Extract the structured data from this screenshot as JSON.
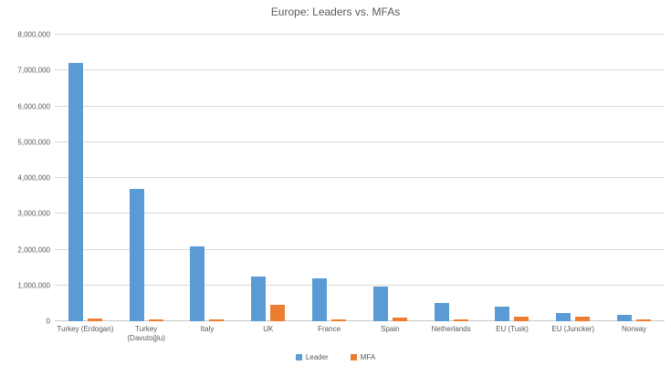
{
  "chart_data": {
    "type": "bar",
    "title": "Europe: Leaders vs. MFAs",
    "categories": [
      "Turkey (Erdogan)",
      "Turkey (Davutoğlu)",
      "Italy",
      "UK",
      "France",
      "Spain",
      "Netherlands",
      "EU (Tusk)",
      "EU (Juncker)",
      "Norway"
    ],
    "series": [
      {
        "name": "Leader",
        "color": "#5b9bd5",
        "values": [
          7200000,
          3700000,
          2100000,
          1250000,
          1200000,
          975000,
          520000,
          420000,
          240000,
          170000
        ]
      },
      {
        "name": "MFA",
        "color": "#ed7d31",
        "values": [
          80000,
          60000,
          60000,
          450000,
          45000,
          90000,
          60000,
          130000,
          120000,
          40000
        ]
      }
    ],
    "xlabel": "",
    "ylabel": "",
    "ylim": [
      0,
      8000000
    ],
    "ytick_interval": 1000000,
    "ytick_labels": [
      "0",
      "1,000,000",
      "2,000,000",
      "3,000,000",
      "4,000,000",
      "5,000,000",
      "6,000,000",
      "7,000,000",
      "8,000,000"
    ],
    "grid": true,
    "legend_position": "bottom"
  },
  "colors": {
    "leader_bar": "#5b9bd5",
    "mfa_bar": "#ed7d31",
    "gridline": "#d9d9d9",
    "axis_text": "#595959",
    "title_text": "#595959",
    "background": "#ffffff"
  }
}
